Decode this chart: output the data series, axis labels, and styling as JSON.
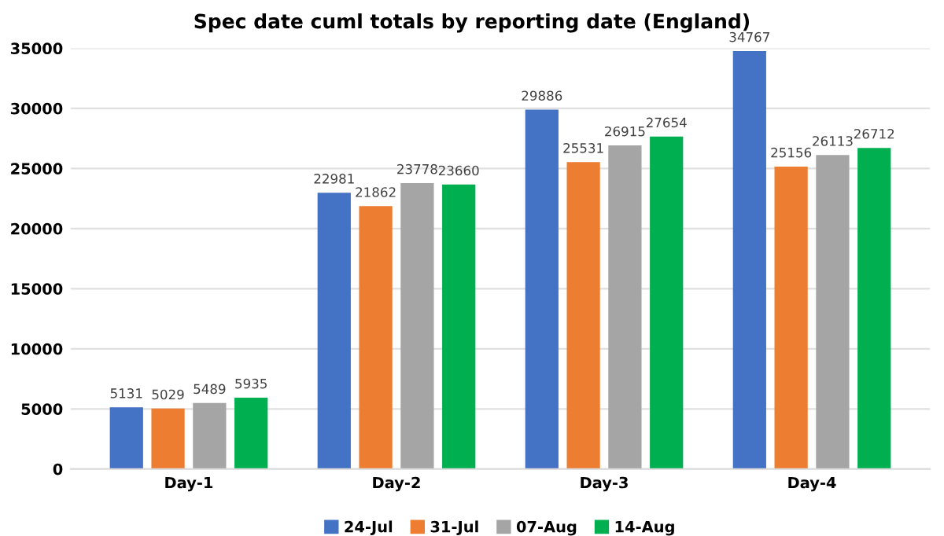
{
  "chart_data": {
    "type": "bar",
    "title": "Spec date cuml totals by reporting date (England)",
    "categories": [
      "Day-1",
      "Day-2",
      "Day-3",
      "Day-4"
    ],
    "series": [
      {
        "name": "24-Jul",
        "color": "#4472c4",
        "values": [
          5131,
          22981,
          29886,
          34767
        ]
      },
      {
        "name": "31-Jul",
        "color": "#ed7d31",
        "values": [
          5029,
          21862,
          25531,
          25156
        ]
      },
      {
        "name": "07-Aug",
        "color": "#a5a5a5",
        "values": [
          5489,
          23778,
          26915,
          26113
        ]
      },
      {
        "name": "14-Aug",
        "color": "#00b050",
        "values": [
          5935,
          23660,
          27654,
          26712
        ]
      }
    ],
    "ylim": [
      0,
      35000
    ],
    "yticks": [
      0,
      5000,
      10000,
      15000,
      20000,
      25000,
      30000,
      35000
    ],
    "grid": "y",
    "legend": "bottom",
    "data_labels": true
  }
}
